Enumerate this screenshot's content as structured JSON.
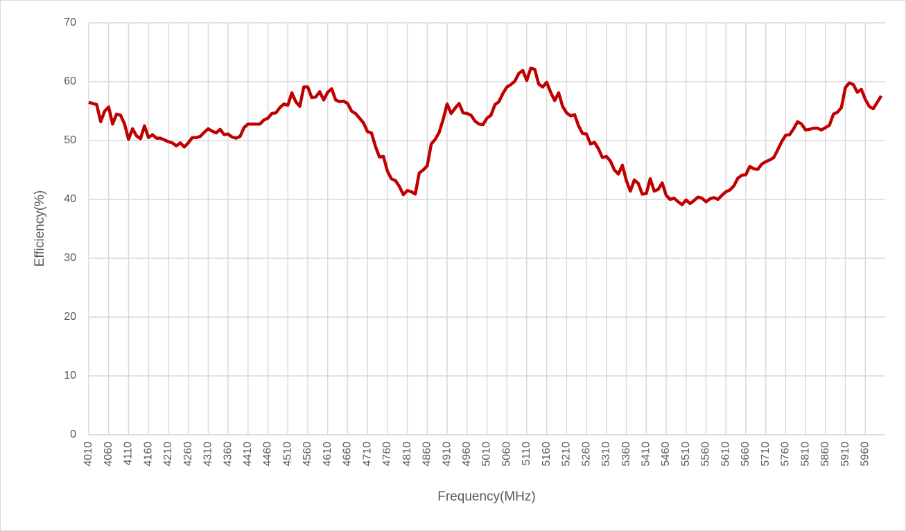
{
  "chart_data": {
    "type": "line",
    "x_label": "Frequency(MHz)",
    "y_label": "Efficiency(%)",
    "x": [
      4010,
      4020,
      4030,
      4040,
      4050,
      4060,
      4070,
      4080,
      4090,
      4100,
      4110,
      4120,
      4130,
      4140,
      4150,
      4160,
      4170,
      4180,
      4190,
      4200,
      4210,
      4220,
      4230,
      4240,
      4250,
      4260,
      4270,
      4280,
      4290,
      4300,
      4310,
      4320,
      4330,
      4340,
      4350,
      4360,
      4370,
      4380,
      4390,
      4400,
      4410,
      4420,
      4430,
      4440,
      4450,
      4460,
      4470,
      4480,
      4490,
      4500,
      4510,
      4520,
      4530,
      4540,
      4550,
      4560,
      4570,
      4580,
      4590,
      4600,
      4610,
      4620,
      4630,
      4640,
      4650,
      4660,
      4670,
      4680,
      4690,
      4700,
      4710,
      4720,
      4730,
      4740,
      4750,
      4760,
      4770,
      4780,
      4790,
      4800,
      4810,
      4820,
      4830,
      4840,
      4850,
      4860,
      4870,
      4880,
      4890,
      4900,
      4910,
      4920,
      4930,
      4940,
      4950,
      4960,
      4970,
      4980,
      4990,
      5000,
      5010,
      5020,
      5030,
      5040,
      5050,
      5060,
      5070,
      5080,
      5090,
      5100,
      5110,
      5120,
      5130,
      5140,
      5150,
      5160,
      5170,
      5180,
      5190,
      5200,
      5210,
      5220,
      5230,
      5240,
      5250,
      5260,
      5270,
      5280,
      5290,
      5300,
      5310,
      5320,
      5330,
      5340,
      5350,
      5360,
      5370,
      5380,
      5390,
      5400,
      5410,
      5420,
      5430,
      5440,
      5450,
      5460,
      5470,
      5480,
      5490,
      5500,
      5510,
      5520,
      5530,
      5540,
      5550,
      5560,
      5570,
      5580,
      5590,
      5600,
      5610,
      5620,
      5630,
      5640,
      5650,
      5660,
      5670,
      5680,
      5690,
      5700,
      5710,
      5720,
      5730,
      5740,
      5750,
      5760,
      5770,
      5780,
      5790,
      5800,
      5810,
      5820,
      5830,
      5840,
      5850,
      5860,
      5870,
      5880,
      5890,
      5900,
      5910,
      5920,
      5930,
      5940,
      5950,
      5960,
      5970,
      5980,
      5990,
      6000
    ],
    "series": [
      {
        "name": "Efficiency",
        "color": "#c00000",
        "values": [
          56.5,
          56.3,
          56.1,
          53.2,
          55.0,
          55.7,
          52.8,
          54.5,
          54.3,
          52.8,
          50.2,
          52.0,
          50.8,
          50.3,
          52.5,
          50.5,
          51.0,
          50.4,
          50.4,
          50.1,
          49.8,
          49.6,
          49.1,
          49.6,
          48.9,
          49.6,
          50.5,
          50.5,
          50.7,
          51.4,
          52.0,
          51.6,
          51.3,
          51.9,
          51.0,
          51.1,
          50.6,
          50.4,
          50.7,
          52.2,
          52.8,
          52.8,
          52.8,
          52.8,
          53.5,
          53.8,
          54.6,
          54.7,
          55.6,
          56.2,
          56.0,
          58.1,
          56.6,
          55.8,
          59.1,
          59.1,
          57.3,
          57.4,
          58.3,
          56.9,
          58.2,
          58.8,
          56.9,
          56.6,
          56.7,
          56.3,
          55.0,
          54.6,
          53.8,
          53.0,
          51.5,
          51.3,
          49.0,
          47.2,
          47.3,
          44.8,
          43.5,
          43.2,
          42.2,
          40.8,
          41.5,
          41.3,
          40.9,
          44.5,
          45.0,
          45.7,
          49.4,
          50.2,
          51.4,
          53.6,
          56.2,
          54.6,
          55.5,
          56.3,
          54.7,
          54.6,
          54.3,
          53.3,
          52.8,
          52.7,
          53.8,
          54.3,
          56.1,
          56.6,
          58.0,
          59.1,
          59.5,
          60.1,
          61.4,
          61.9,
          60.2,
          62.3,
          62.1,
          59.6,
          59.1,
          59.9,
          58.2,
          56.8,
          58.1,
          55.8,
          54.7,
          54.2,
          54.4,
          52.5,
          51.2,
          51.1,
          49.4,
          49.7,
          48.6,
          47.1,
          47.3,
          46.5,
          45.0,
          44.3,
          45.8,
          43.2,
          41.4,
          43.3,
          42.7,
          40.9,
          41.0,
          43.5,
          41.4,
          41.7,
          42.8,
          40.7,
          40.0,
          40.2,
          39.6,
          39.1,
          39.9,
          39.3,
          39.8,
          40.4,
          40.2,
          39.6,
          40.1,
          40.3,
          40.0,
          40.7,
          41.3,
          41.6,
          42.3,
          43.6,
          44.1,
          44.2,
          45.6,
          45.2,
          45.1,
          46.0,
          46.4,
          46.7,
          47.1,
          48.4,
          49.8,
          50.9,
          51.0,
          52.0,
          53.2,
          52.8,
          51.8,
          51.9,
          52.1,
          52.1,
          51.8,
          52.2,
          52.6,
          54.5,
          54.8,
          55.6,
          59.0,
          59.8,
          59.5,
          58.2,
          58.7,
          57.0,
          55.8,
          55.4,
          56.5,
          57.6
        ]
      }
    ],
    "xlim": [
      4010,
      6010
    ],
    "xticks": [
      4010,
      4060,
      4110,
      4160,
      4210,
      4260,
      4310,
      4360,
      4410,
      4460,
      4510,
      4560,
      4610,
      4660,
      4710,
      4760,
      4810,
      4860,
      4910,
      4960,
      5010,
      5060,
      5110,
      5160,
      5210,
      5260,
      5310,
      5360,
      5410,
      5460,
      5510,
      5560,
      5610,
      5660,
      5710,
      5760,
      5810,
      5860,
      5910,
      5960
    ],
    "ylim": [
      0,
      70
    ],
    "yticks": [
      0,
      10,
      20,
      30,
      40,
      50,
      60,
      70
    ],
    "grid": true
  }
}
